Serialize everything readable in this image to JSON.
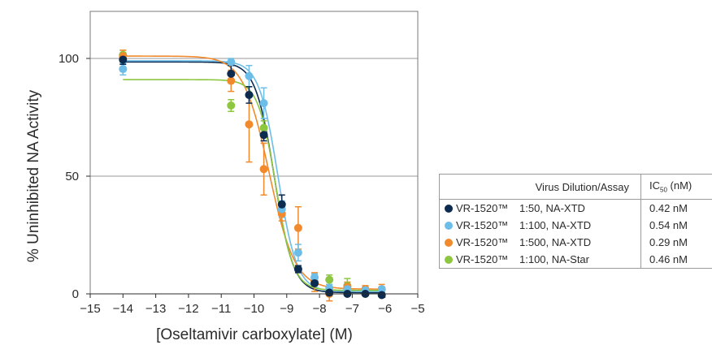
{
  "chart_data": {
    "type": "scatter",
    "xlabel": "[Oseltamivir carboxylate] (M)",
    "ylabel": "% Uninhibited NA Activity",
    "xlim": [
      -15,
      -5
    ],
    "ylim": [
      0,
      100
    ],
    "xticks": [
      "−15",
      "−14",
      "−13",
      "−12",
      "−11",
      "−10",
      "−9",
      "−8",
      "−7",
      "−6",
      "−5"
    ],
    "yticks": [
      "0",
      "50",
      "100"
    ],
    "grid": "horizontal",
    "legend_header": {
      "assay": "Virus Dilution/Assay",
      "ic50_main": "IC",
      "ic50_sub": "50",
      "ic50_unit": " (nM)"
    },
    "series": [
      {
        "name": "VR-1520™",
        "dilution": "1:50, NA-XTD",
        "ic50": "0.42 nM",
        "color": "#0d2b4e",
        "fit": {
          "top": 98.5,
          "bottom": 0.5,
          "log_ic50": -9.377,
          "hill": 1.5
        },
        "points": [
          {
            "x": -14.0,
            "y": 99.5,
            "err": 2.0
          },
          {
            "x": -10.7,
            "y": 93.5,
            "err": 3.5
          },
          {
            "x": -10.15,
            "y": 84.5,
            "err": 3.5
          },
          {
            "x": -9.7,
            "y": 67.5,
            "err": 2.5
          },
          {
            "x": -9.15,
            "y": 38.0,
            "err": 4.0
          },
          {
            "x": -8.65,
            "y": 10.5,
            "err": 1.5
          },
          {
            "x": -8.15,
            "y": 4.5,
            "err": 1.0
          },
          {
            "x": -7.7,
            "y": 0.5,
            "err": 1.0
          },
          {
            "x": -7.15,
            "y": 0.0,
            "err": 0.5
          },
          {
            "x": -6.6,
            "y": 0.0,
            "err": 0.5
          },
          {
            "x": -6.1,
            "y": -0.5,
            "err": 0.5
          }
        ]
      },
      {
        "name": "VR-1520™",
        "dilution": "1:100, NA-XTD",
        "ic50": "0.54 nM",
        "color": "#6cbde8",
        "fit": {
          "top": 99.0,
          "bottom": 1.0,
          "log_ic50": -9.268,
          "hill": 1.5
        },
        "points": [
          {
            "x": -14.0,
            "y": 95.5,
            "err": 2.5
          },
          {
            "x": -10.7,
            "y": 98.5,
            "err": 1.5
          },
          {
            "x": -10.15,
            "y": 92.5,
            "err": 4.5
          },
          {
            "x": -9.7,
            "y": 81.0,
            "err": 6.5
          },
          {
            "x": -9.15,
            "y": 36.0,
            "err": 3.5
          },
          {
            "x": -8.65,
            "y": 17.5,
            "err": 3.5
          },
          {
            "x": -8.15,
            "y": 7.0,
            "err": 1.5
          },
          {
            "x": -7.7,
            "y": 2.5,
            "err": 1.5
          },
          {
            "x": -7.15,
            "y": 2.0,
            "err": 1.5
          },
          {
            "x": -6.6,
            "y": 1.5,
            "err": 1.0
          },
          {
            "x": -6.1,
            "y": 2.0,
            "err": 1.0
          }
        ]
      },
      {
        "name": "VR-1520™",
        "dilution": "1:500, NA-XTD",
        "ic50": "0.29 nM",
        "color": "#f08a2c",
        "fit": {
          "top": 101.0,
          "bottom": 2.0,
          "log_ic50": -9.538,
          "hill": 1.1
        },
        "points": [
          {
            "x": -14.0,
            "y": 101.0,
            "err": 2.5
          },
          {
            "x": -10.7,
            "y": 90.5,
            "err": 4.5
          },
          {
            "x": -10.15,
            "y": 72.0,
            "err": 16.0
          },
          {
            "x": -9.7,
            "y": 53.0,
            "err": 11.0
          },
          {
            "x": -9.15,
            "y": 34.0,
            "err": 3.0
          },
          {
            "x": -8.65,
            "y": 28.0,
            "err": 9.0
          },
          {
            "x": -8.15,
            "y": 5.0,
            "err": 4.0
          },
          {
            "x": -7.7,
            "y": 0.0,
            "err": 3.0
          },
          {
            "x": -7.15,
            "y": 3.0,
            "err": 2.0
          },
          {
            "x": -6.6,
            "y": 2.0,
            "err": 1.5
          },
          {
            "x": -6.1,
            "y": 2.0,
            "err": 2.0
          }
        ]
      },
      {
        "name": "VR-1520™",
        "dilution": "1:100, NA-Star",
        "ic50": "0.46 nM",
        "color": "#8dc63f",
        "fit": {
          "top": 91.0,
          "bottom": 1.5,
          "log_ic50": -9.337,
          "hill": 1.6
        },
        "points": [
          {
            "x": -14.0,
            "y": 101.5,
            "err": 2.0
          },
          {
            "x": -10.7,
            "y": 80.0,
            "err": 2.5
          },
          {
            "x": -9.7,
            "y": 70.5,
            "err": 3.0
          },
          {
            "x": -7.7,
            "y": 6.0,
            "err": 2.0
          },
          {
            "x": -7.15,
            "y": 3.5,
            "err": 3.0
          }
        ]
      }
    ]
  }
}
